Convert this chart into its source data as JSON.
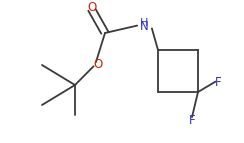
{
  "background_color": "#ffffff",
  "bond_color": "#3a3a3a",
  "atom_colors": {
    "O": "#cc2200",
    "N": "#3333bb",
    "F": "#3333bb"
  },
  "figsize": [
    2.44,
    1.43
  ],
  "dpi": 100
}
